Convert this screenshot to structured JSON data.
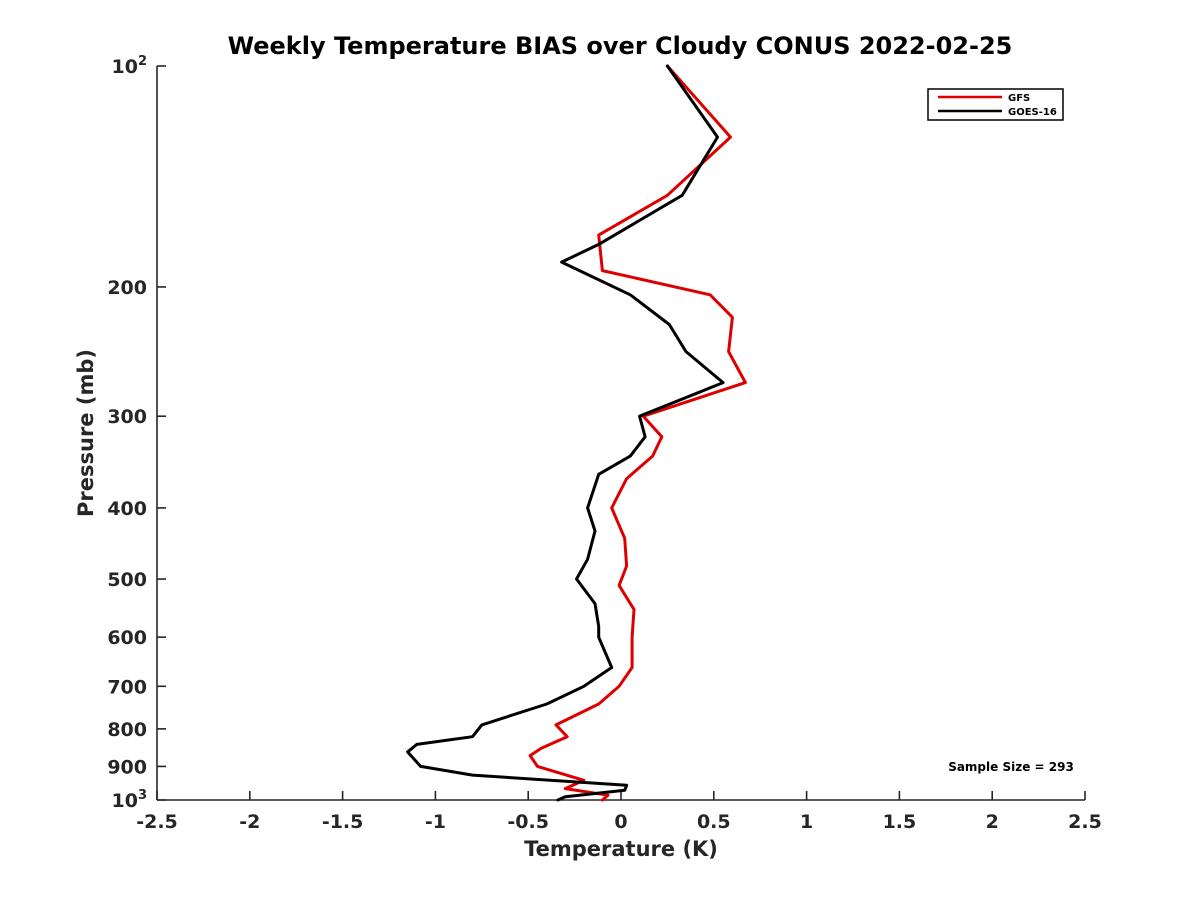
{
  "chart_data": {
    "type": "line",
    "title": "Weekly Temperature BIAS over Cloudy CONUS 2022-02-25",
    "xlabel": "Temperature (K)",
    "ylabel": "Pressure (mb)",
    "xlim": [
      -2.5,
      2.5
    ],
    "ylim": [
      1000,
      100
    ],
    "y_scale": "log",
    "y_reversed": true,
    "grid": false,
    "legend_position": "top-right",
    "x_ticks": [
      "-2.5",
      "-2",
      "-1.5",
      "-1",
      "-0.5",
      "0",
      "0.5",
      "1",
      "1.5",
      "2",
      "2.5"
    ],
    "x_tick_values": [
      -2.5,
      -2,
      -1.5,
      -1,
      -0.5,
      0,
      0.5,
      1,
      1.5,
      2,
      2.5
    ],
    "y_ticks": [
      {
        "value": 100,
        "base": "10",
        "exp": "2"
      },
      {
        "value": 200,
        "label": "200"
      },
      {
        "value": 300,
        "label": "300"
      },
      {
        "value": 400,
        "label": "400"
      },
      {
        "value": 500,
        "label": "500"
      },
      {
        "value": 600,
        "label": "600"
      },
      {
        "value": 700,
        "label": "700"
      },
      {
        "value": 800,
        "label": "800"
      },
      {
        "value": 900,
        "label": "900"
      },
      {
        "value": 1000,
        "base": "10",
        "exp": "3"
      }
    ],
    "annotation": "Sample Size = 293",
    "series": [
      {
        "name": "GFS",
        "color": "#dd0000",
        "points": [
          [
            0.25,
            100
          ],
          [
            0.59,
            125
          ],
          [
            0.25,
            150
          ],
          [
            -0.12,
            170
          ],
          [
            -0.1,
            190
          ],
          [
            0.48,
            205
          ],
          [
            0.6,
            220
          ],
          [
            0.58,
            245
          ],
          [
            0.67,
            270
          ],
          [
            0.12,
            300
          ],
          [
            0.22,
            320
          ],
          [
            0.17,
            340
          ],
          [
            0.03,
            365
          ],
          [
            -0.05,
            400
          ],
          [
            0.02,
            440
          ],
          [
            0.03,
            480
          ],
          [
            -0.01,
            510
          ],
          [
            0.07,
            550
          ],
          [
            0.06,
            600
          ],
          [
            0.06,
            660
          ],
          [
            -0.01,
            700
          ],
          [
            -0.12,
            740
          ],
          [
            -0.35,
            790
          ],
          [
            -0.29,
            820
          ],
          [
            -0.43,
            850
          ],
          [
            -0.49,
            870
          ],
          [
            -0.45,
            900
          ],
          [
            -0.2,
            940
          ],
          [
            -0.3,
            965
          ],
          [
            -0.07,
            985
          ],
          [
            -0.1,
            1000
          ]
        ]
      },
      {
        "name": "GOES-16",
        "color": "#000000",
        "points": [
          [
            0.25,
            100
          ],
          [
            0.52,
            125
          ],
          [
            0.33,
            150
          ],
          [
            -0.12,
            175
          ],
          [
            -0.32,
            185
          ],
          [
            0.05,
            205
          ],
          [
            0.26,
            225
          ],
          [
            0.35,
            245
          ],
          [
            0.55,
            270
          ],
          [
            0.1,
            300
          ],
          [
            0.13,
            320
          ],
          [
            0.05,
            340
          ],
          [
            -0.12,
            360
          ],
          [
            -0.18,
            400
          ],
          [
            -0.14,
            430
          ],
          [
            -0.18,
            470
          ],
          [
            -0.24,
            500
          ],
          [
            -0.14,
            540
          ],
          [
            -0.12,
            580
          ],
          [
            -0.12,
            600
          ],
          [
            -0.05,
            660
          ],
          [
            -0.2,
            700
          ],
          [
            -0.4,
            740
          ],
          [
            -0.75,
            790
          ],
          [
            -0.8,
            820
          ],
          [
            -1.1,
            840
          ],
          [
            -1.15,
            860
          ],
          [
            -1.08,
            900
          ],
          [
            -0.8,
            925
          ],
          [
            0.03,
            955
          ],
          [
            0.02,
            970
          ],
          [
            -0.3,
            990
          ],
          [
            -0.34,
            1000
          ]
        ]
      }
    ]
  }
}
